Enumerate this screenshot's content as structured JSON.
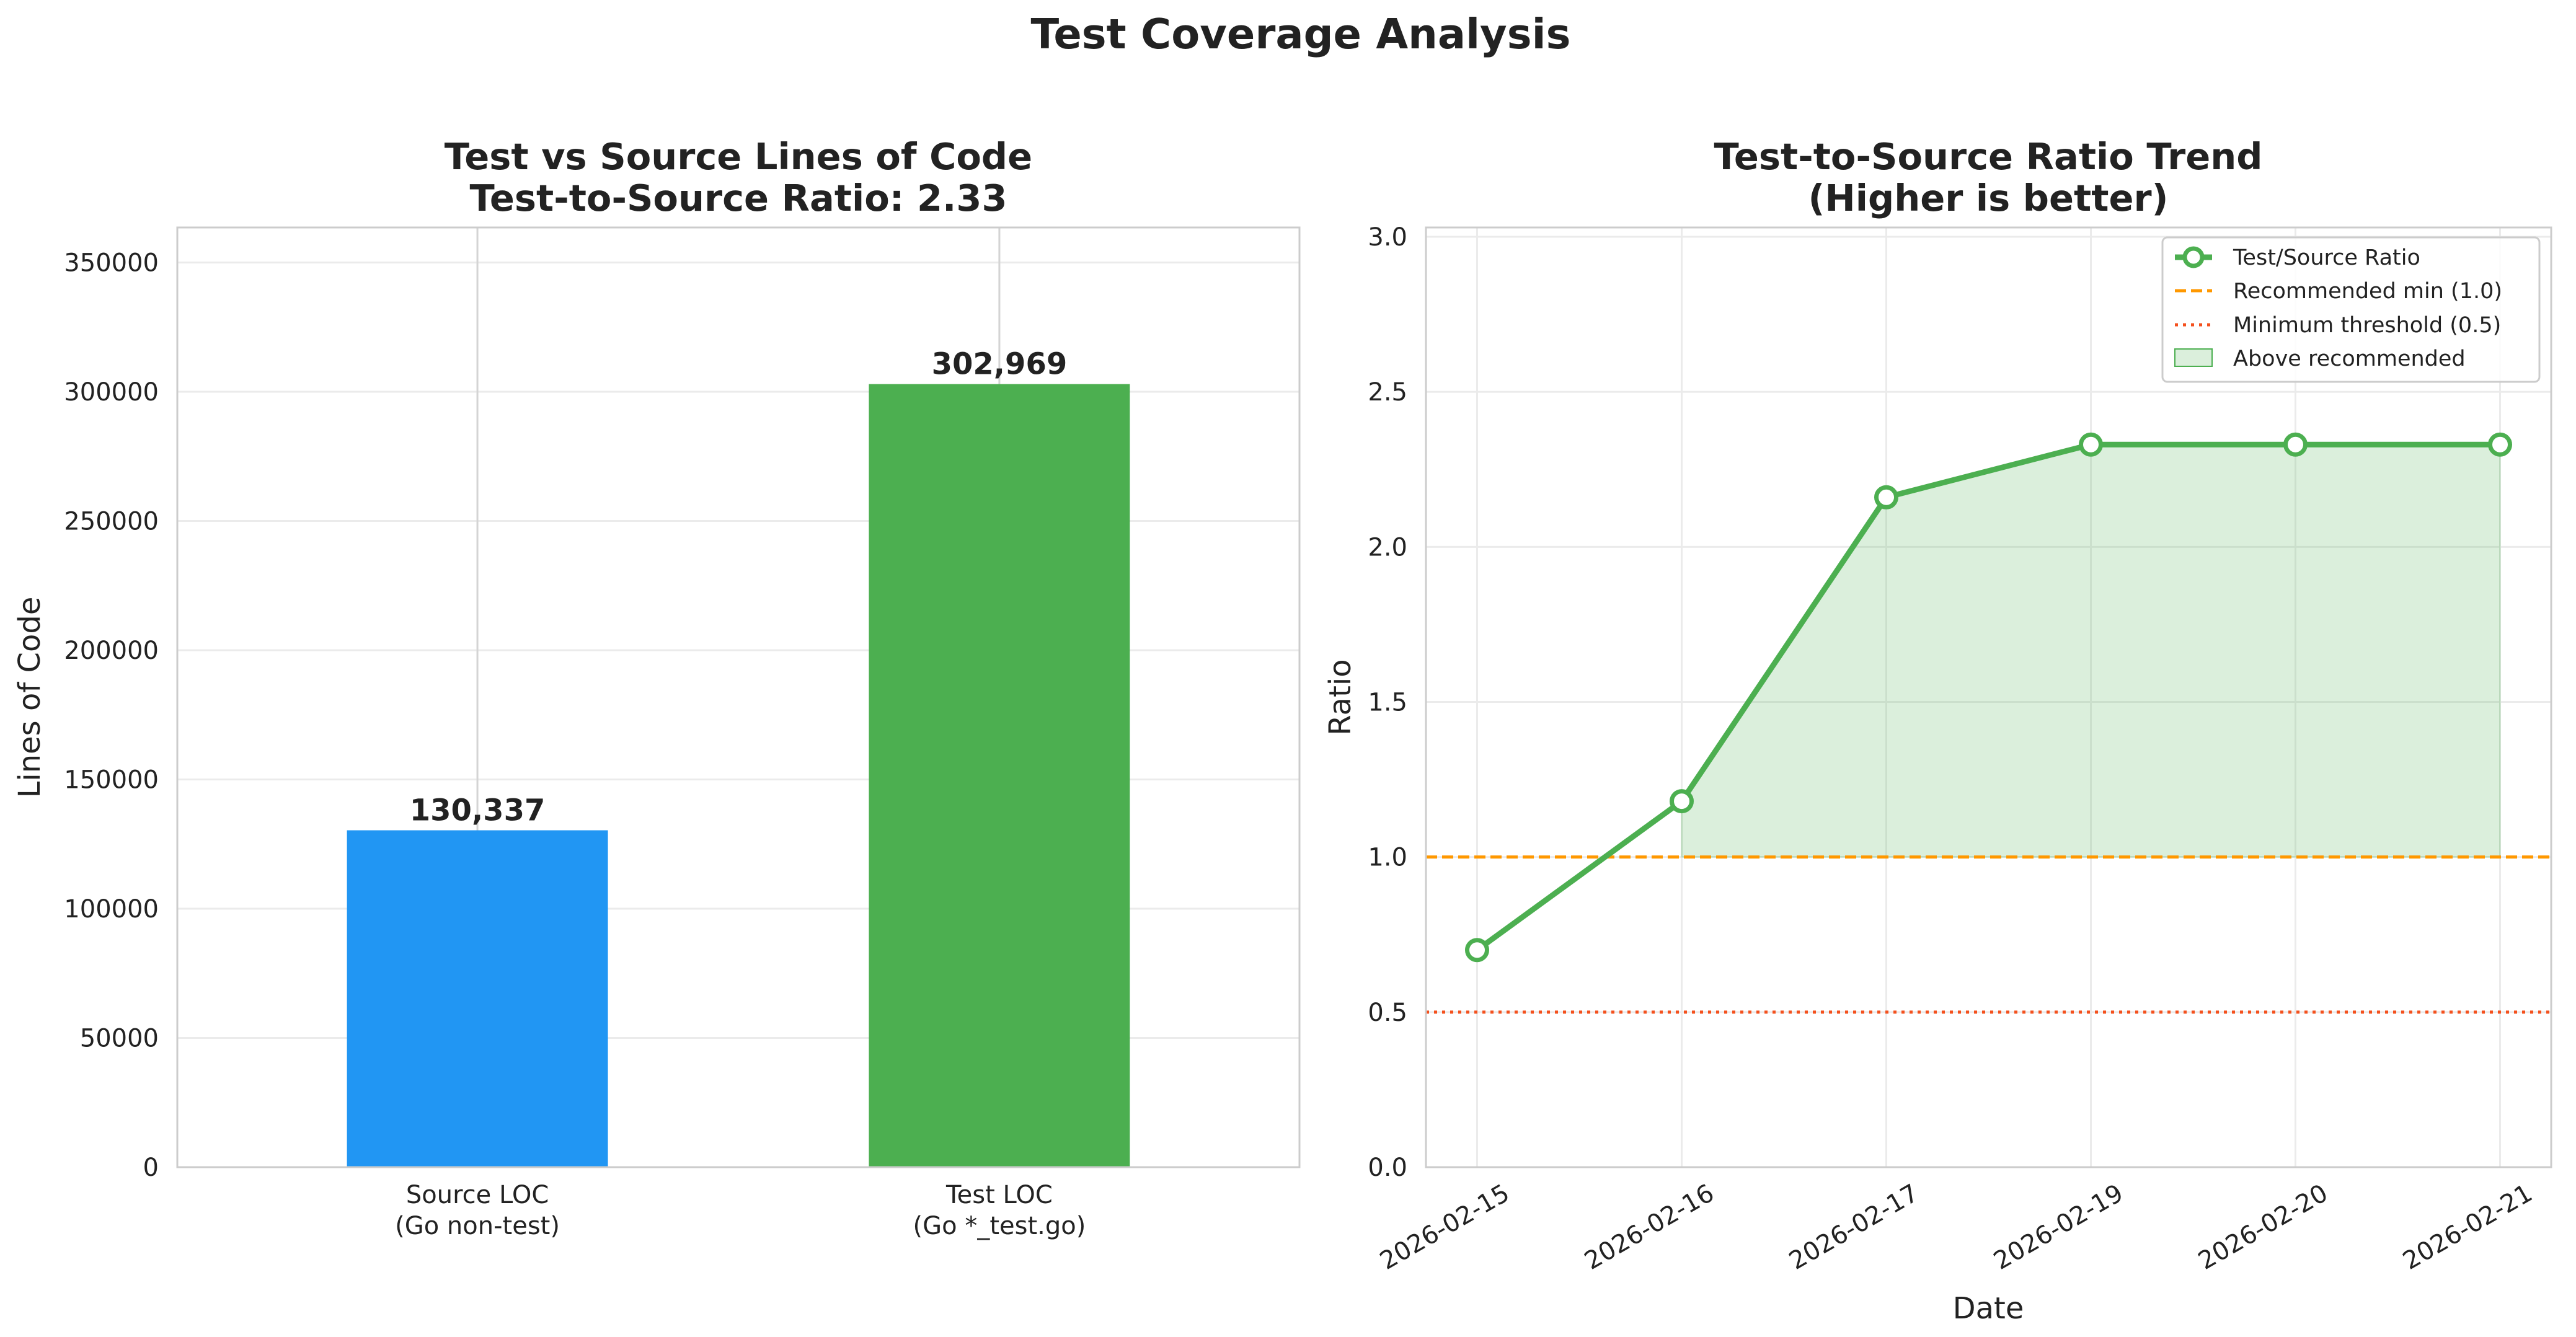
{
  "figure": {
    "suptitle": "Test Coverage Analysis"
  },
  "chart_data": [
    {
      "type": "bar",
      "title_line1": "Test vs Source Lines of Code",
      "title_line2": "Test-to-Source Ratio: 2.33",
      "xlabel": "",
      "ylabel": "Lines of Code",
      "categories": [
        [
          "Source LOC",
          "(Go non-test)"
        ],
        [
          "Test LOC",
          "(Go *_test.go)"
        ]
      ],
      "values": [
        130337,
        302969
      ],
      "value_labels": [
        "130,337",
        "302,969"
      ],
      "colors": [
        "#2196F3",
        "#4CAF50"
      ],
      "ylim": [
        0,
        363563
      ],
      "yticks": [
        0,
        50000,
        100000,
        150000,
        200000,
        250000,
        300000,
        350000
      ],
      "grid": true
    },
    {
      "type": "line",
      "title_line1": "Test-to-Source Ratio Trend",
      "title_line2": "(Higher is better)",
      "xlabel": "Date",
      "ylabel": "Ratio",
      "x": [
        "2026-02-15",
        "2026-02-16",
        "2026-02-17",
        "2026-02-19",
        "2026-02-20",
        "2026-02-21"
      ],
      "series": [
        {
          "name": "Test/Source Ratio",
          "values": [
            0.7,
            1.18,
            2.16,
            2.33,
            2.33,
            2.33
          ],
          "color": "#4CAF50"
        }
      ],
      "reference_lines": [
        {
          "name": "Recommended min (1.0)",
          "y": 1.0,
          "color": "#FF9800",
          "style": "dashed"
        },
        {
          "name": "Minimum threshold (0.5)",
          "y": 0.5,
          "color": "#F4511E",
          "style": "dotted"
        }
      ],
      "fill": {
        "name": "Above recommended",
        "baseline": 1.0,
        "color": "#4CAF50"
      },
      "ylim": [
        0,
        3.03
      ],
      "yticks": [
        0.0,
        0.5,
        1.0,
        1.5,
        2.0,
        2.5,
        3.0
      ],
      "grid": true,
      "legend_position": "top-right"
    }
  ]
}
